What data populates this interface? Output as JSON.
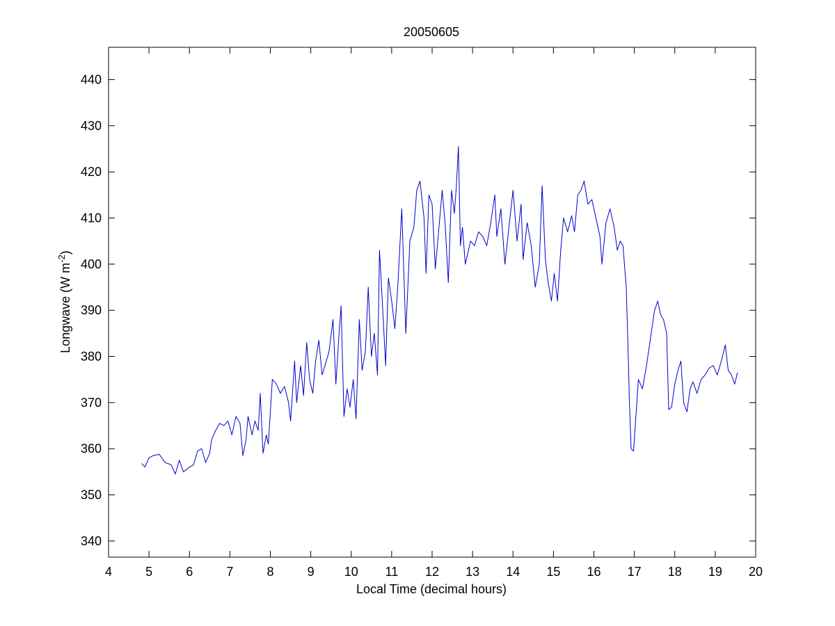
{
  "chart_data": {
    "type": "line",
    "title": "20050605",
    "xlabel": "Local Time (decimal hours)",
    "ylabel_main": "Longwave (W m",
    "ylabel_exp": "-2",
    "ylabel_close": ")",
    "xlim": [
      4,
      20
    ],
    "ylim": [
      336.5,
      447
    ],
    "xticks": [
      4,
      5,
      6,
      7,
      8,
      9,
      10,
      11,
      12,
      13,
      14,
      15,
      16,
      17,
      18,
      19,
      20
    ],
    "yticks": [
      340,
      350,
      360,
      370,
      380,
      390,
      400,
      410,
      420,
      430,
      440
    ],
    "grid": false,
    "line_color": "#0000cc",
    "series": [
      {
        "points": [
          [
            4.82,
            356.8
          ],
          [
            4.9,
            356.0
          ],
          [
            5.0,
            358.0
          ],
          [
            5.1,
            358.5
          ],
          [
            5.25,
            358.8
          ],
          [
            5.4,
            357.0
          ],
          [
            5.55,
            356.5
          ],
          [
            5.65,
            354.5
          ],
          [
            5.75,
            357.5
          ],
          [
            5.85,
            355.0
          ],
          [
            6.0,
            356.0
          ],
          [
            6.1,
            356.5
          ],
          [
            6.2,
            359.5
          ],
          [
            6.3,
            360.0
          ],
          [
            6.4,
            357.0
          ],
          [
            6.5,
            359.0
          ],
          [
            6.55,
            362.0
          ],
          [
            6.65,
            364.0
          ],
          [
            6.75,
            365.5
          ],
          [
            6.85,
            365.0
          ],
          [
            6.95,
            366.0
          ],
          [
            7.05,
            363.0
          ],
          [
            7.15,
            367.0
          ],
          [
            7.25,
            365.5
          ],
          [
            7.32,
            358.5
          ],
          [
            7.4,
            362.0
          ],
          [
            7.45,
            367.0
          ],
          [
            7.55,
            363.0
          ],
          [
            7.62,
            366.0
          ],
          [
            7.7,
            364.0
          ],
          [
            7.75,
            372.0
          ],
          [
            7.82,
            359.0
          ],
          [
            7.9,
            363.0
          ],
          [
            7.95,
            361.0
          ],
          [
            8.05,
            375.0
          ],
          [
            8.15,
            374.0
          ],
          [
            8.25,
            372.0
          ],
          [
            8.35,
            373.5
          ],
          [
            8.45,
            370.0
          ],
          [
            8.5,
            366.0
          ],
          [
            8.6,
            379.0
          ],
          [
            8.65,
            370.0
          ],
          [
            8.75,
            378.0
          ],
          [
            8.82,
            371.5
          ],
          [
            8.9,
            383.0
          ],
          [
            8.97,
            375.0
          ],
          [
            9.05,
            372.0
          ],
          [
            9.12,
            379.0
          ],
          [
            9.2,
            383.5
          ],
          [
            9.28,
            376.0
          ],
          [
            9.35,
            378.0
          ],
          [
            9.45,
            381.0
          ],
          [
            9.55,
            388.0
          ],
          [
            9.62,
            374.0
          ],
          [
            9.7,
            385.0
          ],
          [
            9.75,
            391.0
          ],
          [
            9.82,
            367.0
          ],
          [
            9.9,
            373.0
          ],
          [
            9.97,
            369.0
          ],
          [
            10.05,
            375.0
          ],
          [
            10.12,
            366.5
          ],
          [
            10.2,
            388.0
          ],
          [
            10.27,
            377.0
          ],
          [
            10.35,
            381.0
          ],
          [
            10.42,
            395.0
          ],
          [
            10.5,
            380.0
          ],
          [
            10.57,
            385.0
          ],
          [
            10.65,
            376.0
          ],
          [
            10.7,
            403.0
          ],
          [
            10.78,
            390.0
          ],
          [
            10.85,
            378.0
          ],
          [
            10.92,
            397.0
          ],
          [
            11.0,
            392.0
          ],
          [
            11.08,
            386.0
          ],
          [
            11.15,
            395.0
          ],
          [
            11.25,
            412.0
          ],
          [
            11.35,
            385.0
          ],
          [
            11.45,
            405.0
          ],
          [
            11.55,
            408.0
          ],
          [
            11.62,
            416.0
          ],
          [
            11.7,
            418.0
          ],
          [
            11.8,
            410.0
          ],
          [
            11.85,
            398.0
          ],
          [
            11.92,
            415.0
          ],
          [
            12.0,
            413.0
          ],
          [
            12.08,
            399.0
          ],
          [
            12.15,
            406.0
          ],
          [
            12.25,
            416.0
          ],
          [
            12.32,
            409.0
          ],
          [
            12.4,
            396.0
          ],
          [
            12.48,
            416.0
          ],
          [
            12.55,
            411.0
          ],
          [
            12.6,
            417.0
          ],
          [
            12.65,
            425.5
          ],
          [
            12.7,
            404.0
          ],
          [
            12.75,
            408.0
          ],
          [
            12.82,
            400.0
          ],
          [
            12.9,
            403.0
          ],
          [
            12.95,
            405.0
          ],
          [
            13.05,
            404.0
          ],
          [
            13.15,
            407.0
          ],
          [
            13.25,
            406.0
          ],
          [
            13.35,
            404.0
          ],
          [
            13.45,
            409.0
          ],
          [
            13.55,
            415.0
          ],
          [
            13.6,
            406.0
          ],
          [
            13.7,
            412.0
          ],
          [
            13.8,
            400.0
          ],
          [
            13.9,
            408.0
          ],
          [
            14.0,
            416.0
          ],
          [
            14.1,
            405.0
          ],
          [
            14.2,
            413.0
          ],
          [
            14.25,
            401.0
          ],
          [
            14.35,
            409.0
          ],
          [
            14.45,
            404.0
          ],
          [
            14.55,
            395.0
          ],
          [
            14.65,
            400.0
          ],
          [
            14.72,
            417.0
          ],
          [
            14.8,
            401.0
          ],
          [
            14.87,
            396.0
          ],
          [
            14.95,
            392.0
          ],
          [
            15.02,
            398.0
          ],
          [
            15.1,
            392.0
          ],
          [
            15.18,
            403.0
          ],
          [
            15.25,
            410.0
          ],
          [
            15.35,
            407.0
          ],
          [
            15.45,
            410.5
          ],
          [
            15.52,
            407.0
          ],
          [
            15.6,
            415.0
          ],
          [
            15.68,
            416.0
          ],
          [
            15.76,
            418.0
          ],
          [
            15.85,
            413.0
          ],
          [
            15.95,
            414.0
          ],
          [
            16.05,
            410.0
          ],
          [
            16.15,
            406.0
          ],
          [
            16.2,
            400.0
          ],
          [
            16.3,
            409.0
          ],
          [
            16.4,
            412.0
          ],
          [
            16.5,
            408.0
          ],
          [
            16.58,
            403.0
          ],
          [
            16.65,
            405.0
          ],
          [
            16.72,
            404.0
          ],
          [
            16.8,
            395.0
          ],
          [
            16.85,
            380.0
          ],
          [
            16.88,
            370.0
          ],
          [
            16.92,
            360.0
          ],
          [
            16.98,
            359.5
          ],
          [
            17.03,
            366.0
          ],
          [
            17.1,
            375.0
          ],
          [
            17.2,
            373.0
          ],
          [
            17.3,
            378.0
          ],
          [
            17.4,
            384.0
          ],
          [
            17.5,
            390.0
          ],
          [
            17.58,
            392.0
          ],
          [
            17.65,
            389.0
          ],
          [
            17.72,
            388.0
          ],
          [
            17.8,
            385.0
          ],
          [
            17.85,
            368.5
          ],
          [
            17.92,
            369.0
          ],
          [
            18.0,
            374.0
          ],
          [
            18.08,
            377.0
          ],
          [
            18.15,
            379.0
          ],
          [
            18.22,
            370.0
          ],
          [
            18.3,
            368.0
          ],
          [
            18.38,
            373.0
          ],
          [
            18.45,
            374.5
          ],
          [
            18.55,
            372.0
          ],
          [
            18.65,
            375.0
          ],
          [
            18.75,
            376.0
          ],
          [
            18.85,
            377.5
          ],
          [
            18.95,
            378.0
          ],
          [
            19.05,
            376.0
          ],
          [
            19.15,
            379.0
          ],
          [
            19.25,
            382.5
          ],
          [
            19.32,
            377.0
          ],
          [
            19.4,
            376.0
          ],
          [
            19.48,
            374.0
          ],
          [
            19.55,
            376.5
          ]
        ]
      }
    ]
  }
}
